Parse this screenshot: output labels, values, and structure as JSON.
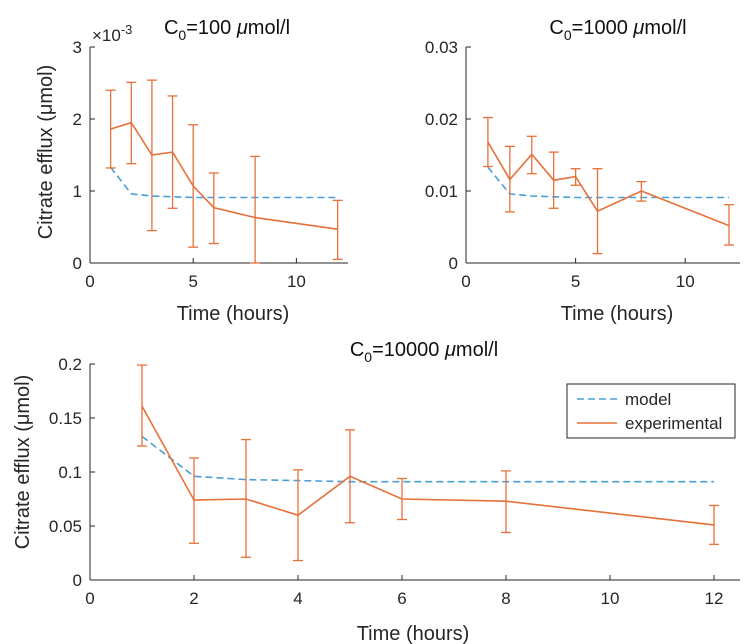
{
  "colors": {
    "model": "#4a9fd6",
    "experimental": "#e8703a",
    "axis": "#262626"
  },
  "chart_data": [
    {
      "type": "line",
      "title_base": "C",
      "title_sub": "0",
      "title_rest": "=100 ",
      "title_mu": "μ",
      "title_unit": "mol/l",
      "exponent_label": "×10",
      "exponent_value": "-3",
      "xlabel": "Time (hours)",
      "ylabel": "Citrate efflux (μmol)",
      "xlim": [
        0,
        12.5
      ],
      "ylim": [
        0,
        3
      ],
      "xticks": [
        0,
        5,
        10
      ],
      "yticks": [
        0,
        1,
        2,
        3
      ],
      "ytick_labels": [
        "0",
        "1",
        "2",
        "3"
      ],
      "series": [
        {
          "name": "model",
          "x": [
            1,
            2,
            3,
            4,
            5,
            6,
            8,
            12
          ],
          "y": [
            1.33,
            0.96,
            0.93,
            0.92,
            0.91,
            0.91,
            0.91,
            0.91
          ]
        },
        {
          "name": "experimental",
          "x": [
            1,
            2,
            3,
            4,
            5,
            6,
            8,
            12
          ],
          "y": [
            1.86,
            1.95,
            1.5,
            1.54,
            1.07,
            0.77,
            0.63,
            0.47
          ],
          "err_low": [
            1.32,
            1.38,
            0.45,
            0.76,
            0.22,
            0.27,
            0.0,
            0.05
          ],
          "err_high": [
            2.4,
            2.51,
            2.54,
            2.32,
            1.92,
            1.25,
            1.48,
            0.87
          ]
        }
      ]
    },
    {
      "type": "line",
      "title_base": "C",
      "title_sub": "0",
      "title_rest": "=1000 ",
      "title_mu": "μ",
      "title_unit": "mol/l",
      "xlabel": "Time (hours)",
      "ylabel": "",
      "xlim": [
        0,
        12.5
      ],
      "ylim": [
        0,
        0.03
      ],
      "xticks": [
        0,
        5,
        10
      ],
      "yticks": [
        0,
        0.01,
        0.02,
        0.03
      ],
      "ytick_labels": [
        "0",
        "0.01",
        "0.02",
        "0.03"
      ],
      "series": [
        {
          "name": "model",
          "x": [
            1,
            2,
            3,
            4,
            5,
            6,
            8,
            12
          ],
          "y": [
            0.0133,
            0.0096,
            0.0093,
            0.0092,
            0.0091,
            0.0091,
            0.0091,
            0.0091
          ]
        },
        {
          "name": "experimental",
          "x": [
            1,
            2,
            3,
            4,
            5,
            6,
            8,
            12
          ],
          "y": [
            0.0168,
            0.0116,
            0.0151,
            0.0115,
            0.012,
            0.0072,
            0.01,
            0.0052
          ],
          "err_low": [
            0.0134,
            0.0071,
            0.0124,
            0.0076,
            0.0108,
            0.0013,
            0.0086,
            0.0025
          ],
          "err_high": [
            0.0202,
            0.0162,
            0.0176,
            0.0154,
            0.0131,
            0.0131,
            0.0113,
            0.0081
          ]
        }
      ]
    },
    {
      "type": "line",
      "title_base": "C",
      "title_sub": "0",
      "title_rest": "=10000 ",
      "title_mu": "μ",
      "title_unit": "mol/l",
      "xlabel": "Time (hours)",
      "ylabel": "Citrate efflux (μmol)",
      "xlim": [
        0,
        12.5
      ],
      "ylim": [
        0,
        0.2
      ],
      "xticks": [
        0,
        2,
        4,
        6,
        8,
        10,
        12
      ],
      "yticks": [
        0,
        0.05,
        0.1,
        0.15,
        0.2
      ],
      "ytick_labels": [
        "0",
        "0.05",
        "0.1",
        "0.15",
        "0.2"
      ],
      "legend": {
        "placement": "top-right",
        "entries": [
          "model",
          "experimental"
        ]
      },
      "series": [
        {
          "name": "model",
          "x": [
            1,
            2,
            3,
            4,
            5,
            6,
            8,
            12
          ],
          "y": [
            0.133,
            0.096,
            0.093,
            0.092,
            0.091,
            0.091,
            0.091,
            0.091
          ]
        },
        {
          "name": "experimental",
          "x": [
            1,
            2,
            3,
            4,
            5,
            6,
            8,
            12
          ],
          "y": [
            0.161,
            0.074,
            0.075,
            0.06,
            0.096,
            0.075,
            0.073,
            0.051
          ],
          "err_low": [
            0.124,
            0.034,
            0.021,
            0.018,
            0.053,
            0.056,
            0.044,
            0.033
          ],
          "err_high": [
            0.199,
            0.113,
            0.13,
            0.102,
            0.139,
            0.094,
            0.101,
            0.069
          ]
        }
      ]
    }
  ]
}
